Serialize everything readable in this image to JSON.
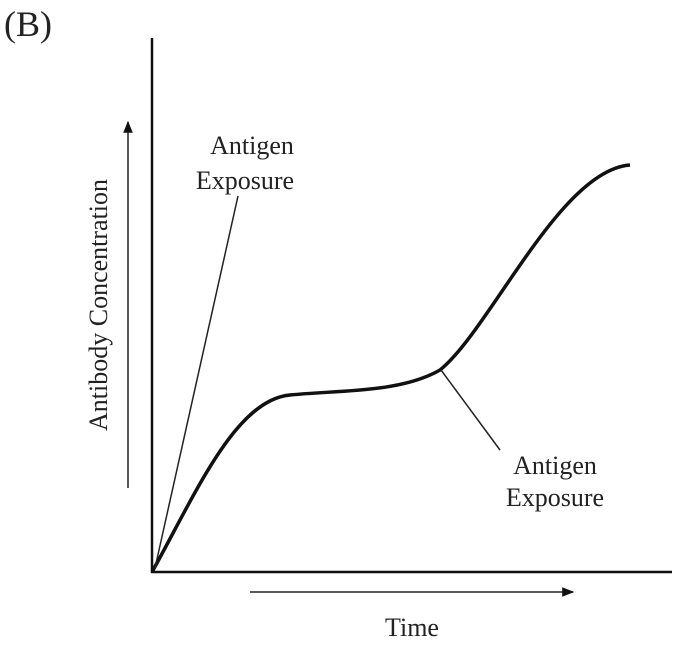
{
  "label": "(B)",
  "y_axis_label": "Antibody Concentration",
  "x_axis_label": "Time",
  "annotations": [
    {
      "lines": [
        "Antigen",
        "Exposure"
      ]
    },
    {
      "lines": [
        "Antigen",
        "Exposure"
      ]
    }
  ]
}
